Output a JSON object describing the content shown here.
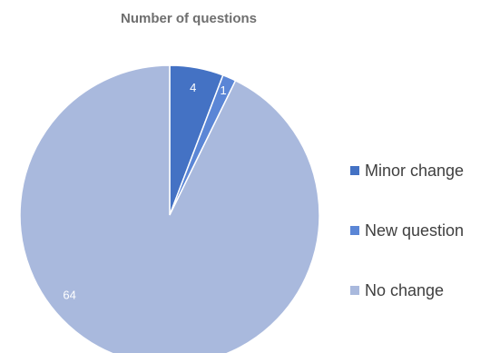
{
  "chart_data": {
    "type": "pie",
    "title": "Number of questions",
    "categories": [
      "Minor change",
      "New question",
      "No change"
    ],
    "values": [
      4,
      1,
      64
    ],
    "colors": [
      "#4472c4",
      "#5b86d6",
      "#a9b9dd"
    ],
    "data_labels": [
      "4",
      "1",
      "64"
    ],
    "start_angle_deg": 0,
    "direction": "clockwise",
    "legend_position": "right"
  }
}
